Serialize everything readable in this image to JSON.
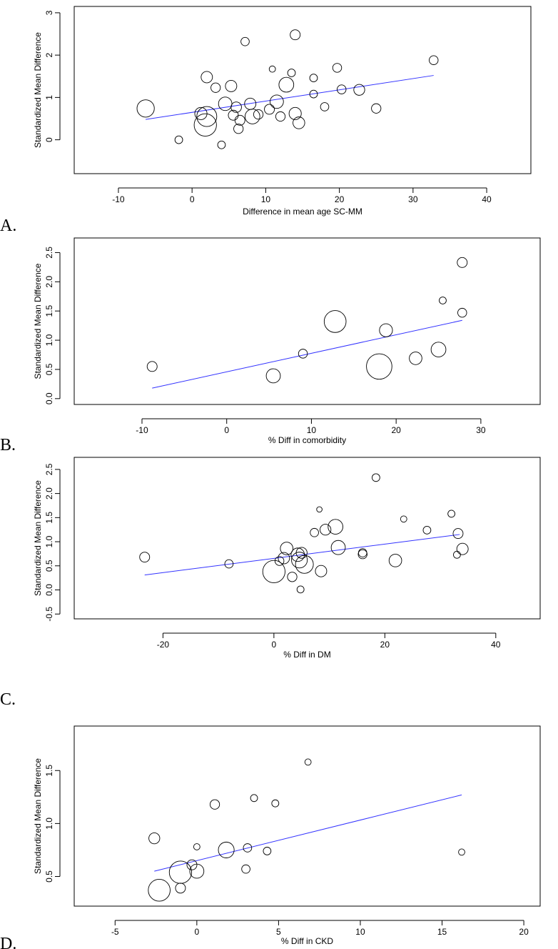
{
  "chart_data": [
    {
      "type": "scatter",
      "panel_label": "A.",
      "title": "",
      "xlabel": "Difference in mean age SC-MM",
      "ylabel": "Standardized Mean Difference",
      "xlim": [
        -16,
        46
      ],
      "ylim": [
        -0.8,
        3.15
      ],
      "xticks": [
        -10,
        0,
        10,
        20,
        30,
        40
      ],
      "yticks": [
        0,
        1,
        2,
        3
      ],
      "regression_line": {
        "x": [
          -6.3,
          32.8
        ],
        "y": [
          0.48,
          1.52
        ],
        "color": "#3333ff"
      },
      "points": [
        {
          "x": -6.3,
          "y": 0.74,
          "w": 3.0
        },
        {
          "x": -1.8,
          "y": 0.0,
          "w": 0.6
        },
        {
          "x": 1.2,
          "y": 0.62,
          "w": 1.5
        },
        {
          "x": 1.8,
          "y": 0.35,
          "w": 5.0
        },
        {
          "x": 2.0,
          "y": 0.55,
          "w": 4.0
        },
        {
          "x": 2.0,
          "y": 1.48,
          "w": 1.3
        },
        {
          "x": 3.2,
          "y": 1.23,
          "w": 0.9
        },
        {
          "x": 4.0,
          "y": -0.12,
          "w": 0.6
        },
        {
          "x": 4.5,
          "y": 0.85,
          "w": 1.8
        },
        {
          "x": 5.3,
          "y": 1.27,
          "w": 1.3
        },
        {
          "x": 5.6,
          "y": 0.58,
          "w": 1.0
        },
        {
          "x": 6.0,
          "y": 0.77,
          "w": 1.1
        },
        {
          "x": 6.3,
          "y": 0.26,
          "w": 0.9
        },
        {
          "x": 6.5,
          "y": 0.46,
          "w": 1.0
        },
        {
          "x": 7.2,
          "y": 2.32,
          "w": 0.7
        },
        {
          "x": 7.9,
          "y": 0.85,
          "w": 1.3
        },
        {
          "x": 8.2,
          "y": 0.55,
          "w": 2.2
        },
        {
          "x": 9.0,
          "y": 0.6,
          "w": 0.9
        },
        {
          "x": 10.5,
          "y": 0.72,
          "w": 1.0
        },
        {
          "x": 10.9,
          "y": 1.67,
          "w": 0.4
        },
        {
          "x": 11.5,
          "y": 0.9,
          "w": 1.8
        },
        {
          "x": 12.0,
          "y": 0.55,
          "w": 0.9
        },
        {
          "x": 12.8,
          "y": 1.3,
          "w": 2.2
        },
        {
          "x": 13.5,
          "y": 1.58,
          "w": 0.6
        },
        {
          "x": 14.0,
          "y": 0.62,
          "w": 1.5
        },
        {
          "x": 14.0,
          "y": 2.48,
          "w": 1.0
        },
        {
          "x": 14.5,
          "y": 0.4,
          "w": 1.4
        },
        {
          "x": 16.5,
          "y": 1.46,
          "w": 0.6
        },
        {
          "x": 16.5,
          "y": 1.08,
          "w": 0.6
        },
        {
          "x": 18.0,
          "y": 0.78,
          "w": 0.7
        },
        {
          "x": 19.7,
          "y": 1.7,
          "w": 0.8
        },
        {
          "x": 20.3,
          "y": 1.19,
          "w": 0.8
        },
        {
          "x": 22.7,
          "y": 1.18,
          "w": 1.2
        },
        {
          "x": 25.0,
          "y": 0.74,
          "w": 0.9
        },
        {
          "x": 32.8,
          "y": 1.88,
          "w": 0.8
        }
      ]
    },
    {
      "type": "scatter",
      "panel_label": "B.",
      "title": "",
      "xlabel": "% Diff in comorbidity",
      "ylabel": "Standardized Mean Difference",
      "xlim": [
        -18,
        37
      ],
      "ylim": [
        -0.1,
        2.75
      ],
      "xticks": [
        -10,
        0,
        10,
        20,
        30
      ],
      "yticks": [
        0.0,
        0.5,
        1.0,
        1.5,
        2.0,
        2.5
      ],
      "ytick_labels": [
        "0.0",
        "0.5",
        "1.0",
        "1.5",
        "2.0",
        "2.5"
      ],
      "regression_line": {
        "x": [
          -8.8,
          27.8
        ],
        "y": [
          0.18,
          1.34
        ],
        "color": "#3333ff"
      },
      "points": [
        {
          "x": -8.8,
          "y": 0.55,
          "w": 1.0
        },
        {
          "x": 5.5,
          "y": 0.39,
          "w": 2.0
        },
        {
          "x": 9.0,
          "y": 0.77,
          "w": 0.8
        },
        {
          "x": 12.8,
          "y": 1.32,
          "w": 4.8
        },
        {
          "x": 18.0,
          "y": 0.55,
          "w": 6.5
        },
        {
          "x": 18.8,
          "y": 1.17,
          "w": 1.7
        },
        {
          "x": 22.3,
          "y": 0.69,
          "w": 1.6
        },
        {
          "x": 25.0,
          "y": 0.84,
          "w": 2.2
        },
        {
          "x": 25.5,
          "y": 1.68,
          "w": 0.5
        },
        {
          "x": 27.8,
          "y": 1.47,
          "w": 0.8
        },
        {
          "x": 27.8,
          "y": 2.33,
          "w": 1.0
        }
      ]
    },
    {
      "type": "scatter",
      "panel_label": "C.",
      "title": "",
      "xlabel": "% Diff in DM",
      "ylabel": "Standardized Mean Difference",
      "xlim": [
        -36,
        48
      ],
      "ylim": [
        -0.6,
        2.75
      ],
      "xticks": [
        -20,
        0,
        20,
        40
      ],
      "yticks": [
        -0.5,
        0.0,
        0.5,
        1.0,
        1.5,
        2.0,
        2.5
      ],
      "ytick_labels": [
        "-0.5",
        "0.0",
        "0.5",
        "1.0",
        "1.5",
        "2.0",
        "2.5"
      ],
      "regression_line": {
        "x": [
          -23.3,
          33.5
        ],
        "y": [
          0.31,
          1.15
        ],
        "color": "#3333ff"
      },
      "points": [
        {
          "x": -23.3,
          "y": 0.68,
          "w": 1.0
        },
        {
          "x": -8.1,
          "y": 0.54,
          "w": 0.7
        },
        {
          "x": 0.0,
          "y": 0.38,
          "w": 5.0
        },
        {
          "x": 1.0,
          "y": 0.6,
          "w": 0.8
        },
        {
          "x": 1.8,
          "y": 0.66,
          "w": 1.3
        },
        {
          "x": 2.3,
          "y": 0.86,
          "w": 1.6
        },
        {
          "x": 3.3,
          "y": 0.27,
          "w": 0.9
        },
        {
          "x": 4.3,
          "y": 0.73,
          "w": 1.8
        },
        {
          "x": 4.6,
          "y": 0.62,
          "w": 2.5
        },
        {
          "x": 4.8,
          "y": 0.01,
          "w": 0.5
        },
        {
          "x": 5.0,
          "y": 0.77,
          "w": 1.2
        },
        {
          "x": 5.5,
          "y": 0.53,
          "w": 3.2
        },
        {
          "x": 7.3,
          "y": 1.19,
          "w": 0.7
        },
        {
          "x": 8.2,
          "y": 1.67,
          "w": 0.3
        },
        {
          "x": 8.5,
          "y": 0.39,
          "w": 1.3
        },
        {
          "x": 9.3,
          "y": 1.25,
          "w": 1.2
        },
        {
          "x": 11.1,
          "y": 1.31,
          "w": 2.2
        },
        {
          "x": 11.6,
          "y": 0.88,
          "w": 2.0
        },
        {
          "x": 16.0,
          "y": 0.74,
          "w": 0.8
        },
        {
          "x": 16.0,
          "y": 0.77,
          "w": 0.7
        },
        {
          "x": 18.4,
          "y": 2.33,
          "w": 0.6
        },
        {
          "x": 21.9,
          "y": 0.61,
          "w": 1.6
        },
        {
          "x": 23.4,
          "y": 1.47,
          "w": 0.4
        },
        {
          "x": 27.6,
          "y": 1.24,
          "w": 0.6
        },
        {
          "x": 32.0,
          "y": 1.58,
          "w": 0.5
        },
        {
          "x": 33.0,
          "y": 0.73,
          "w": 0.5
        },
        {
          "x": 33.2,
          "y": 1.17,
          "w": 1.0
        },
        {
          "x": 34.0,
          "y": 0.85,
          "w": 1.3
        }
      ]
    },
    {
      "type": "scatter",
      "panel_label": "D.",
      "title": "",
      "xlabel": "% Diff in CKD",
      "ylabel": "Standardized Mean Difference",
      "xlim": [
        -7.5,
        21.0
      ],
      "ylim": [
        0.22,
        1.92
      ],
      "xticks": [
        -5,
        0,
        5,
        10,
        15,
        20
      ],
      "yticks": [
        0.5,
        1.0,
        1.5
      ],
      "ytick_labels": [
        "0.5",
        "1.0",
        "1.5"
      ],
      "regression_line": {
        "x": [
          -2.6,
          16.2
        ],
        "y": [
          0.55,
          1.27
        ],
        "color": "#3333ff"
      },
      "points": [
        {
          "x": -2.6,
          "y": 0.86,
          "w": 1.2
        },
        {
          "x": -2.3,
          "y": 0.37,
          "w": 4.8
        },
        {
          "x": -1.0,
          "y": 0.39,
          "w": 1.0
        },
        {
          "x": -1.0,
          "y": 0.54,
          "w": 5.0
        },
        {
          "x": -0.3,
          "y": 0.61,
          "w": 1.0
        },
        {
          "x": 0.0,
          "y": 0.55,
          "w": 2.0
        },
        {
          "x": 0.0,
          "y": 0.78,
          "w": 0.4
        },
        {
          "x": 1.1,
          "y": 1.18,
          "w": 0.9
        },
        {
          "x": 1.8,
          "y": 0.75,
          "w": 2.5
        },
        {
          "x": 3.0,
          "y": 0.57,
          "w": 0.7
        },
        {
          "x": 3.1,
          "y": 0.77,
          "w": 0.7
        },
        {
          "x": 3.5,
          "y": 1.24,
          "w": 0.5
        },
        {
          "x": 4.3,
          "y": 0.74,
          "w": 0.6
        },
        {
          "x": 4.8,
          "y": 1.19,
          "w": 0.5
        },
        {
          "x": 6.8,
          "y": 1.58,
          "w": 0.4
        },
        {
          "x": 16.2,
          "y": 0.73,
          "w": 0.4
        }
      ]
    }
  ]
}
